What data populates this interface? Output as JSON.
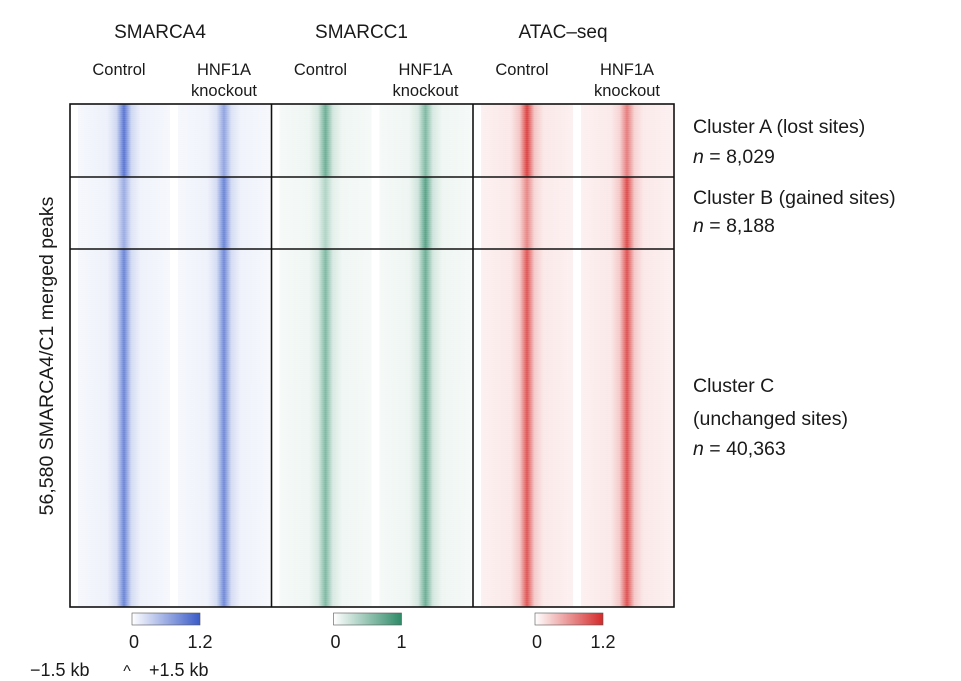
{
  "chart_data": {
    "type": "heatmap",
    "groups": [
      {
        "name": "SMARCA4",
        "color": "#3a5bc7",
        "samples": [
          "Control",
          "HNF1A knockout"
        ],
        "sample_lines": [
          [
            "Control"
          ],
          [
            "HNF1A",
            "knockout"
          ]
        ],
        "scale": {
          "min": "0",
          "max": "1.2",
          "vmin": 0,
          "vmax": 1.2
        },
        "cluster_peak_intensity": [
          [
            0.85,
            0.55
          ],
          [
            0.5,
            0.75
          ],
          [
            0.75,
            0.72
          ]
        ]
      },
      {
        "name": "SMARCC1",
        "color": "#2e8a68",
        "samples": [
          "Control",
          "HNF1A knockout"
        ],
        "sample_lines": [
          [
            "Control"
          ],
          [
            "HNF1A",
            "knockout"
          ]
        ],
        "scale": {
          "min": "0",
          "max": "1",
          "vmin": 0,
          "vmax": 1
        },
        "cluster_peak_intensity": [
          [
            0.7,
            0.6
          ],
          [
            0.35,
            0.8
          ],
          [
            0.6,
            0.7
          ]
        ]
      },
      {
        "name": "ATAC–seq",
        "color": "#d42a2a",
        "samples": [
          "Control",
          "HNF1A knockout"
        ],
        "sample_lines": [
          [
            "Control"
          ],
          [
            "HNF1A",
            "knockout"
          ]
        ],
        "scale": {
          "min": "0",
          "max": "1.2",
          "vmin": 0,
          "vmax": 1.2
        },
        "cluster_peak_intensity": [
          [
            0.9,
            0.6
          ],
          [
            0.55,
            0.85
          ],
          [
            0.8,
            0.82
          ]
        ]
      }
    ],
    "clusters": [
      {
        "name": "Cluster A (lost sites)",
        "lines": [
          "Cluster A (lost sites)"
        ],
        "n_label": "8,029",
        "n": 8029
      },
      {
        "name": "Cluster B (gained sites)",
        "lines": [
          "Cluster B (gained sites)"
        ],
        "n_label": "8,188",
        "n": 8188
      },
      {
        "name": "Cluster C (unchanged sites)",
        "lines": [
          "Cluster C",
          "(unchanged sites)"
        ],
        "n_label": "40,363",
        "n": 40363
      }
    ],
    "ylabel": "56,580 SMARCA4/C1 merged peaks",
    "n_prefix": "n",
    "n_equals": " = ",
    "x_range_labels": {
      "left": "−1.5 kb",
      "center": "^",
      "right": "+1.5 kb"
    }
  }
}
